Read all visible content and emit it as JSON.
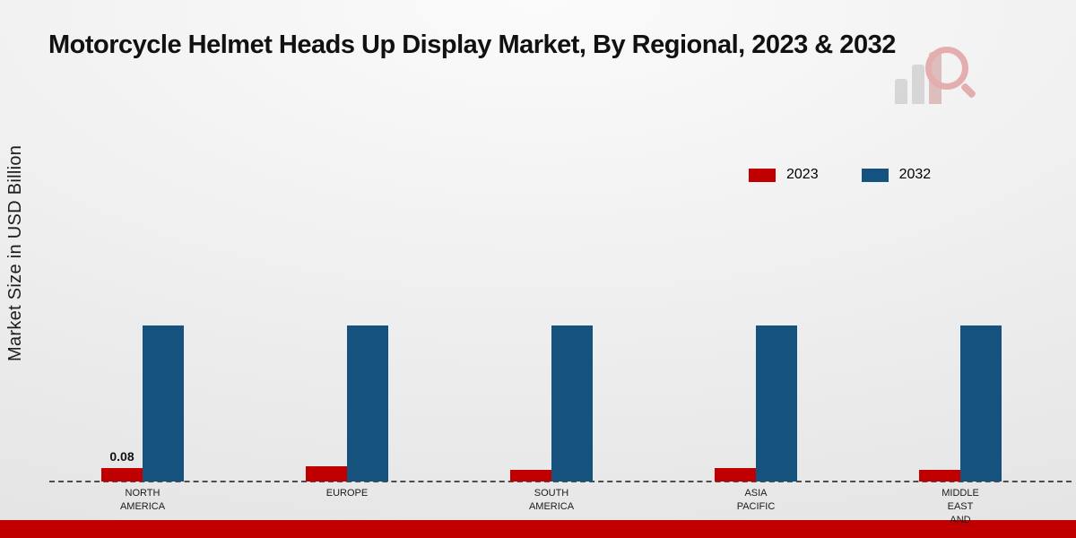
{
  "title": "Motorcycle Helmet Heads Up Display Market, By Regional, 2023 & 2032",
  "ylabel": "Market Size in USD Billion",
  "legend": [
    {
      "label": "2023",
      "color": "#c00000"
    },
    {
      "label": "2032",
      "color": "#16527e"
    }
  ],
  "footer_band_color": "#c00000",
  "chart_data": {
    "type": "bar",
    "title": "Motorcycle Helmet Heads Up Display Market, By Regional, 2023 & 2032",
    "xlabel": "",
    "ylabel": "Market Size in USD Billion",
    "categories": [
      "NORTH\nAMERICA",
      "EUROPE",
      "SOUTH\nAMERICA",
      "ASIA\nPACIFIC",
      "MIDDLE\nEAST\nAND"
    ],
    "series": [
      {
        "name": "2023",
        "color": "#c00000",
        "values": [
          0.08,
          0.09,
          0.07,
          0.08,
          0.07
        ]
      },
      {
        "name": "2032",
        "color": "#16527e",
        "values": [
          0.92,
          0.92,
          0.92,
          0.92,
          0.92
        ]
      }
    ],
    "bar_labels": [
      "0.08",
      "",
      "",
      "",
      ""
    ],
    "ylim": [
      0,
      1.2
    ],
    "grid": false,
    "baseline_style": "dashed",
    "legend_position": "upper-right"
  }
}
